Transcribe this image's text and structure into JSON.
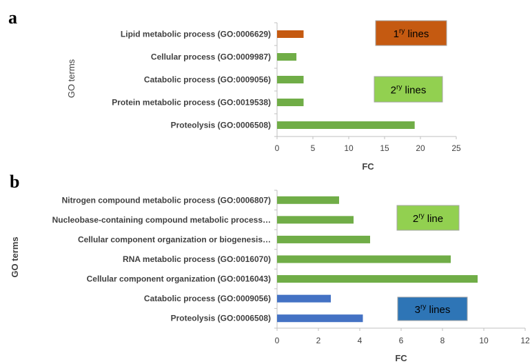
{
  "chart_data": [
    {
      "type": "bar",
      "orientation": "horizontal",
      "panel": "a",
      "xlabel": "FC",
      "ylabel": "GO terms",
      "xlim": [
        0,
        25
      ],
      "xticks": [
        0,
        5,
        10,
        15,
        20,
        25
      ],
      "categories": [
        "Lipid metabolic process (GO:0006629)",
        "Cellular process (GO:0009987)",
        "Catabolic process (GO:0009056)",
        "Protein metabolic process (GO:0019538)",
        "Proteolysis (GO:0006508)"
      ],
      "values": [
        3.7,
        2.7,
        3.7,
        3.7,
        19.2
      ],
      "bar_colors": [
        "#c55a11",
        "#70ad47",
        "#70ad47",
        "#70ad47",
        "#70ad47"
      ],
      "annotations": [
        {
          "base": "1",
          "sup": "ry",
          "rest": " lines",
          "color": "#c55a11"
        },
        {
          "base": "2",
          "sup": "ry",
          "rest": " lines",
          "color": "#92d050"
        }
      ]
    },
    {
      "type": "bar",
      "orientation": "horizontal",
      "panel": "b",
      "xlabel": "FC",
      "ylabel": "GO terms",
      "xlim": [
        0,
        12
      ],
      "xticks": [
        0,
        2,
        4,
        6,
        8,
        10,
        12
      ],
      "categories": [
        "Nitrogen compound metabolic process (GO:0006807)",
        "Nucleobase-containing compound metabolic process…",
        "Cellular component organization or biogenesis…",
        "RNA metabolic process (GO:0016070)",
        "Cellular component organization (GO:0016043)",
        "Catabolic process (GO:0009056)",
        "Proteolysis (GO:0006508)"
      ],
      "values": [
        3.0,
        3.7,
        4.5,
        8.4,
        9.7,
        2.6,
        4.15
      ],
      "bar_colors": [
        "#70ad47",
        "#70ad47",
        "#70ad47",
        "#70ad47",
        "#70ad47",
        "#4472c4",
        "#4472c4"
      ],
      "annotations": [
        {
          "base": "2",
          "sup": "ry",
          "rest": " line",
          "color": "#92d050"
        },
        {
          "base": "3",
          "sup": "ry",
          "rest": " lines",
          "color": "#2e75b6"
        }
      ]
    }
  ]
}
